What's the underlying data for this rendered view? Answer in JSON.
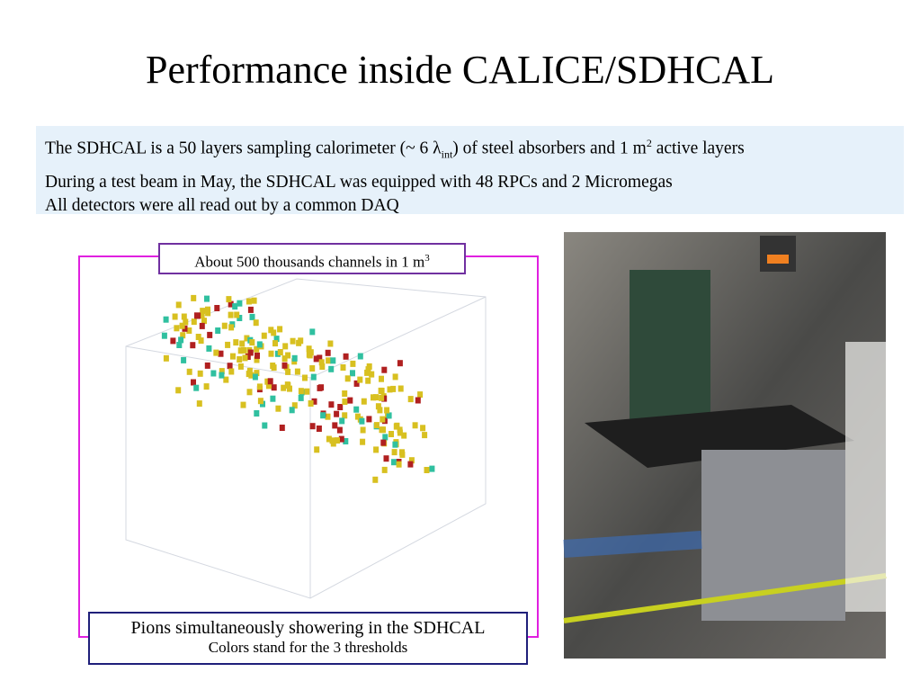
{
  "title": "Performance inside CALICE/SDHCAL",
  "info": {
    "line1": [
      "The SDHCAL is a 50 layers sampling calorimeter (~ 6 λ",
      "int",
      ") of steel absorbers and 1 m",
      "2",
      " active layers"
    ],
    "line2": "During a test beam in May, the SDHCAL was equipped with 48 RPCs and 2 Micromegas",
    "line3": "All detectors were all read out by a common DAQ"
  },
  "callout": [
    "About 500 thousands channels in 1 m",
    "3"
  ],
  "caption": {
    "line1": "Pions simultaneously showering in the SDHCAL",
    "line2": "Colors stand for the 3 thresholds"
  }
}
